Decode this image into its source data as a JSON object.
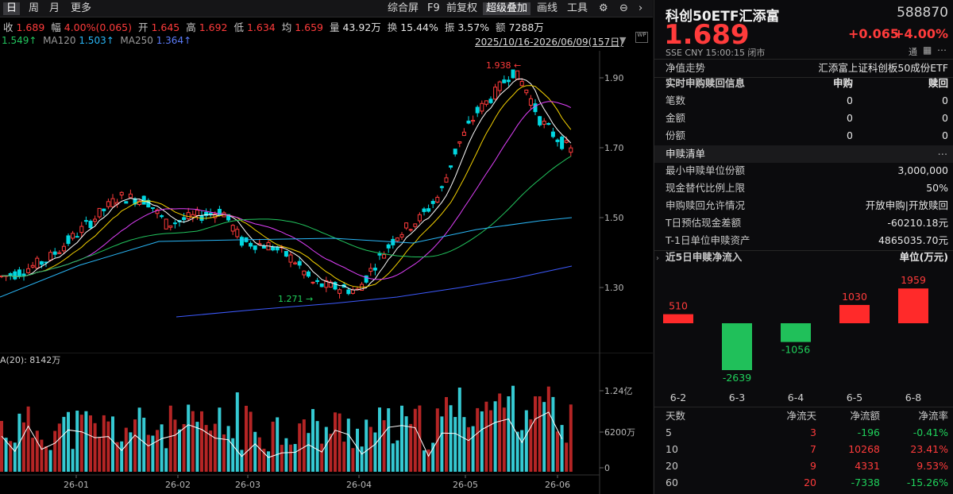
{
  "toolbar": {
    "period_tabs": [
      "日",
      "周",
      "月",
      "更多"
    ],
    "right_items": [
      "综合屏",
      "F9",
      "前复权",
      "超级叠加",
      "画线",
      "工具"
    ]
  },
  "quote_line": {
    "close_label": "收",
    "close_value": "1.689",
    "amp_label": "幅",
    "amp_value": "4.00%(0.065)",
    "open_label": "开",
    "open_value": "1.645",
    "high_label": "高",
    "high_value": "1.692",
    "low_label": "低",
    "low_value": "1.634",
    "avg_label": "均",
    "avg_value": "1.659",
    "vol_label": "量",
    "vol_value": "43.92万",
    "turnover_label": "换",
    "turnover_value": "15.44%",
    "swing_label": "振",
    "swing_value": "3.57%",
    "amount_label": "额",
    "amount_value": "7288万"
  },
  "ma_line": {
    "ma_prev": "1.549↑",
    "ma120_label": "MA120",
    "ma120_value": "1.503↑",
    "ma250_label": "MA250",
    "ma250_value": "1.364↑",
    "range": "2025/10/16-2026/06/09(157日)"
  },
  "price_axis": [
    "1.90",
    "1.70",
    "1.50",
    "1.30"
  ],
  "max_annotation": "1.938",
  "min_annotation": "1.271",
  "vol_header": "A(20): 8142万",
  "vol_axis": [
    "1.24亿",
    "6200万",
    "0"
  ],
  "date_axis": [
    "26-01",
    "26-02",
    "26-03",
    "26-04",
    "26-05",
    "26-06"
  ],
  "colors": {
    "up": "#ff3b3b",
    "down": "#00d7e0",
    "ma5": "#ffffff",
    "ma10": "#f5d200",
    "ma20": "#e040fb",
    "ma60": "#22c55e",
    "ma120": "#29b6f6",
    "ma250": "#3d5afe"
  },
  "right": {
    "name": "科创50ETF汇添富",
    "code": "588870",
    "price": "1.689",
    "change": "+0.065",
    "change_pct": "+4.00%",
    "meta": "SSE  CNY  15:00:15  闭市",
    "nav_label": "净值走势",
    "nav_value": "汇添富上证科创板50成份ETF",
    "realtime_title": "实时申购赎回信息",
    "realtime_col1": "申购",
    "realtime_col2": "赎回",
    "realtime_rows": [
      {
        "label": "笔数",
        "v1": "0",
        "v2": "0"
      },
      {
        "label": "金额",
        "v1": "0",
        "v2": "0"
      },
      {
        "label": "份额",
        "v1": "0",
        "v2": "0"
      }
    ],
    "list_title": "申赎清单",
    "list_rows": [
      {
        "label": "最小申赎单位份额",
        "value": "3,000,000"
      },
      {
        "label": "现金替代比例上限",
        "value": "50%"
      },
      {
        "label": "申购赎回允许情况",
        "value": "开放申购|开放赎回"
      },
      {
        "label": "T日预估现金差额",
        "value": "-60210.18元"
      },
      {
        "label": "T-1日单位申赎资产",
        "value": "4865035.70元"
      }
    ],
    "flow_title": "近5日申赎净流入",
    "flow_unit": "单位(万元)",
    "flow_table_headers": [
      "天数",
      "净流天",
      "净流额",
      "净流率"
    ],
    "flow_table": [
      {
        "days": "5",
        "count": "3",
        "amount": "-196",
        "rate": "-0.41%"
      },
      {
        "days": "10",
        "count": "7",
        "amount": "10268",
        "rate": "23.41%"
      },
      {
        "days": "20",
        "count": "9",
        "amount": "4331",
        "rate": "9.53%"
      },
      {
        "days": "60",
        "count": "20",
        "amount": "-7338",
        "rate": "-15.26%"
      }
    ]
  },
  "chart_data": [
    {
      "type": "bar",
      "title": "近5日申赎净流入",
      "ylabel": "单位(万元)",
      "categories": [
        "6-2",
        "6-3",
        "6-4",
        "6-5",
        "6-8"
      ],
      "values": [
        510,
        -2639,
        -1056,
        1030,
        1959
      ]
    }
  ]
}
